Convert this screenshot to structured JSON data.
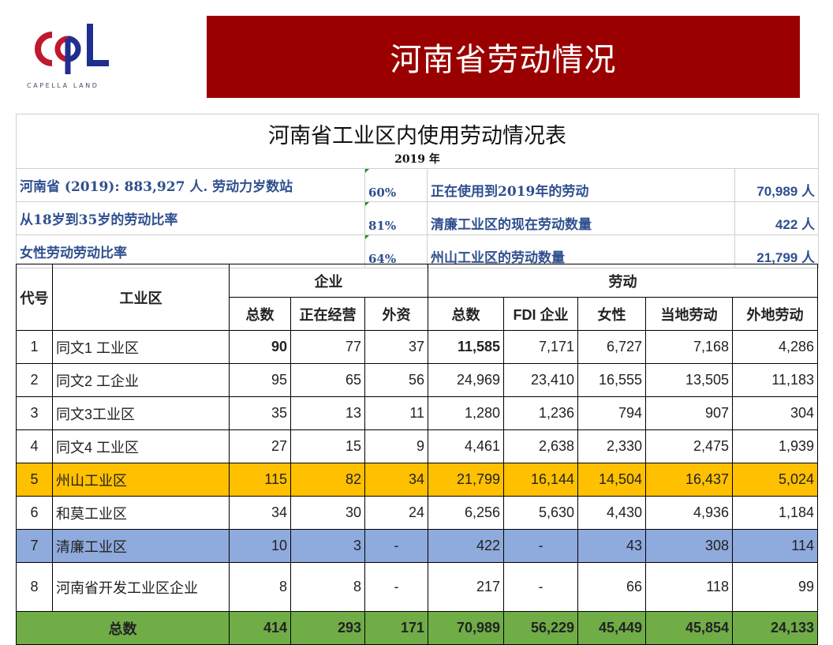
{
  "logo": {
    "text": "CAPELLA LAND"
  },
  "banner": {
    "title": "河南省劳动情况"
  },
  "table_title": "河南省工业区内使用劳动情况表",
  "year": "2019 年",
  "info": [
    {
      "left": "河南省 (2019): 883,927 人. 劳动力岁数站",
      "pct": "60%",
      "label": "正在使用到2019年的劳动",
      "value": "70,989 人"
    },
    {
      "left": "从18岁到35岁的劳动比率",
      "pct": "81%",
      "label": "清廉工业区的现在劳动数量",
      "value": "422 人"
    },
    {
      "left": "女性劳动劳动比率",
      "pct": "64%",
      "label": "州山工业区的劳动数量",
      "value": "21,799 人"
    }
  ],
  "headers": {
    "code": "代号",
    "zone": "工业区",
    "enterprise": "企业",
    "labor": "劳动",
    "ent_total": "总数",
    "ent_active": "正在经营",
    "ent_foreign": "外资",
    "lab_total": "总数",
    "lab_fdi": "FDI 企业",
    "lab_female": "女性",
    "lab_local": "当地劳动",
    "lab_outside": "外地劳动"
  },
  "rows": [
    {
      "code": "1",
      "name": "同文1 工业区",
      "c1": "90",
      "c2": "77",
      "c3": "37",
      "c4": "11,585",
      "c5": "7,171",
      "c6": "6,727",
      "c7": "7,168",
      "c8": "4,286"
    },
    {
      "code": "2",
      "name": "同文2 工企业",
      "c1": "95",
      "c2": "65",
      "c3": "56",
      "c4": "24,969",
      "c5": "23,410",
      "c6": "16,555",
      "c7": "13,505",
      "c8": "11,183"
    },
    {
      "code": "3",
      "name": "同文3工业区",
      "c1": "35",
      "c2": "13",
      "c3": "11",
      "c4": "1,280",
      "c5": "1,236",
      "c6": "794",
      "c7": "907",
      "c8": "304"
    },
    {
      "code": "4",
      "name": "同文4 工业区",
      "c1": "27",
      "c2": "15",
      "c3": "9",
      "c4": "4,461",
      "c5": "2,638",
      "c6": "2,330",
      "c7": "2,475",
      "c8": "1,939"
    },
    {
      "code": "5",
      "name": "州山工业区",
      "c1": "115",
      "c2": "82",
      "c3": "34",
      "c4": "21,799",
      "c5": "16,144",
      "c6": "14,504",
      "c7": "16,437",
      "c8": "5,024"
    },
    {
      "code": "6",
      "name": "和莫工业区",
      "c1": "34",
      "c2": "30",
      "c3": "24",
      "c4": "6,256",
      "c5": "5,630",
      "c6": "4,430",
      "c7": "4,936",
      "c8": "1,184"
    },
    {
      "code": "7",
      "name": "清廉工业区",
      "c1": "10",
      "c2": "3",
      "c3": "-",
      "c4": "422",
      "c5": "-",
      "c6": "43",
      "c7": "308",
      "c8": "114"
    },
    {
      "code": "8",
      "name": "河南省开发工业区企业",
      "c1": "8",
      "c2": "8",
      "c3": "-",
      "c4": "217",
      "c5": "-",
      "c6": "66",
      "c7": "118",
      "c8": "99"
    }
  ],
  "total": {
    "label": "总数",
    "c1": "414",
    "c2": "293",
    "c3": "171",
    "c4": "70,989",
    "c5": "56,229",
    "c6": "45,449",
    "c7": "45,854",
    "c8": "24,133"
  },
  "colors": {
    "banner": "#9b0000",
    "highlight_row": "#ffc000",
    "blue_row": "#8faadc",
    "total_row": "#70ad47",
    "info_text": "#2f4f8f"
  }
}
